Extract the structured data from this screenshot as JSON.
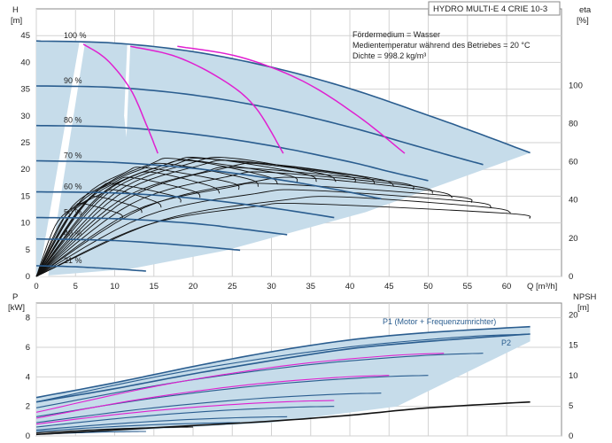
{
  "chart_data": [
    {
      "type": "line",
      "panel": "head",
      "title": "HYDRO MULTI-E 4 CRIE 10-3",
      "ylabel_left": [
        "H",
        "[m]"
      ],
      "ylabel_right": [
        "eta",
        "[%]"
      ],
      "xlabel": "Q [m³/h]",
      "xlim": [
        0,
        67
      ],
      "ylim": [
        0,
        50
      ],
      "x_ticks": [
        0,
        5,
        10,
        15,
        20,
        25,
        30,
        35,
        40,
        45,
        50,
        55,
        60
      ],
      "y_ticks": [
        0,
        5,
        10,
        15,
        20,
        25,
        30,
        35,
        40,
        45
      ],
      "y2_ticks": [
        0,
        20,
        40,
        60,
        80,
        100
      ],
      "y2lim": [
        0,
        140
      ],
      "grid": true,
      "notes": [
        "Fördermedium = Wasser",
        "Medientemperatur während des Betriebes = 20 °C",
        "Dichte = 998.2 kg/m³"
      ],
      "speed_labels": [
        "100 %",
        "90 %",
        "80 %",
        "70 %",
        "60 %",
        "50 %",
        "40 %",
        "21 %"
      ],
      "series": [
        {
          "label": "100 %",
          "color": "#2a5d8f",
          "x": [
            0,
            10,
            20,
            30,
            40,
            50,
            57,
            63
          ],
          "y": [
            44.0,
            43.6,
            42.0,
            39.1,
            35.1,
            30.1,
            26.4,
            23.1
          ]
        },
        {
          "label": "90 %",
          "color": "#2a5d8f",
          "x": [
            0,
            10,
            20,
            30,
            40,
            47,
            53,
            57
          ],
          "y": [
            35.6,
            35.3,
            33.9,
            31.4,
            27.9,
            25.0,
            22.5,
            20.9
          ]
        },
        {
          "label": "80 %",
          "color": "#2a5d8f",
          "x": [
            0,
            10,
            20,
            30,
            40,
            45,
            50
          ],
          "y": [
            28.2,
            27.9,
            26.6,
            24.4,
            21.4,
            19.6,
            17.9
          ]
        },
        {
          "label": "70 %",
          "color": "#2a5d8f",
          "x": [
            0,
            10,
            20,
            30,
            38,
            44
          ],
          "y": [
            21.6,
            21.3,
            20.2,
            18.3,
            16.3,
            14.5
          ]
        },
        {
          "label": "60 %",
          "color": "#2a5d8f",
          "x": [
            0,
            10,
            20,
            30,
            38
          ],
          "y": [
            15.8,
            15.6,
            14.6,
            12.8,
            11.0
          ]
        },
        {
          "label": "50 %",
          "color": "#2a5d8f",
          "x": [
            0,
            10,
            20,
            26,
            32
          ],
          "y": [
            11.0,
            10.8,
            9.9,
            8.9,
            7.8
          ]
        },
        {
          "label": "40 %",
          "color": "#2a5d8f",
          "x": [
            0,
            10,
            20,
            26
          ],
          "y": [
            7.0,
            6.7,
            5.7,
            4.9
          ]
        },
        {
          "label": "21 %",
          "color": "#2a5d8f",
          "x": [
            0,
            5,
            10,
            14
          ],
          "y": [
            2.0,
            1.8,
            1.4,
            1.0
          ]
        }
      ],
      "magenta_curves": [
        {
          "x": [
            6,
            9,
            12,
            14,
            15.5
          ],
          "y": [
            43.4,
            40.5,
            35.0,
            28.5,
            23.0
          ]
        },
        {
          "x": [
            12,
            18,
            24,
            28,
            31.5
          ],
          "y": [
            43.0,
            41.0,
            36.5,
            31.5,
            23.0
          ]
        },
        {
          "x": [
            18,
            26,
            34,
            41,
            47
          ],
          "y": [
            43.0,
            41.0,
            36.5,
            30.0,
            23.0
          ]
        }
      ],
      "efficiency_curves_count": 22
    },
    {
      "type": "line",
      "panel": "power",
      "ylabel_left": [
        "P",
        "[kW]"
      ],
      "ylabel_right": [
        "NPSH",
        "[m]"
      ],
      "xlim": [
        0,
        67
      ],
      "ylim": [
        0,
        9
      ],
      "y_ticks": [
        0,
        2,
        4,
        6,
        8
      ],
      "y2_ticks": [
        0,
        5,
        10,
        15,
        20
      ],
      "y2lim": [
        0,
        22
      ],
      "grid": true,
      "annotations": [
        "P1 (Motor + Frequenzumrichter)",
        "P2"
      ],
      "series": [
        {
          "label": "P1 100 %",
          "color": "#2a5d8f",
          "x": [
            0,
            10,
            20,
            30,
            40,
            50,
            63
          ],
          "y": [
            2.6,
            3.6,
            4.7,
            5.7,
            6.5,
            7.0,
            7.4
          ]
        },
        {
          "label": "P2 100 %",
          "color": "#2a5d8f",
          "x": [
            0,
            10,
            20,
            30,
            40,
            50,
            63
          ],
          "y": [
            2.3,
            3.2,
            4.2,
            5.1,
            5.9,
            6.4,
            6.9
          ]
        },
        {
          "label": "NPSH",
          "color": "#111111",
          "x": [
            0,
            10,
            20,
            30,
            40,
            50,
            63
          ],
          "y": [
            0.1,
            0.4,
            0.7,
            1.0,
            1.4,
            1.9,
            2.3
          ]
        }
      ]
    }
  ]
}
